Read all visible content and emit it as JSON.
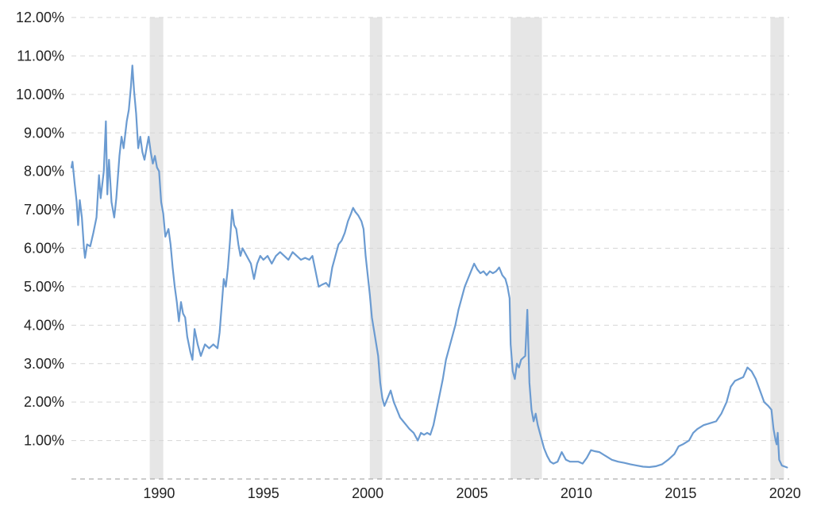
{
  "chart_data": {
    "type": "line",
    "title": "",
    "xlabel": "",
    "ylabel": "",
    "xlim": [
      1985.8,
      2020.2
    ],
    "ylim": [
      0,
      12
    ],
    "grid": true,
    "legend": "none",
    "y_ticks": [
      {
        "value": 1,
        "label": "1.00%"
      },
      {
        "value": 2,
        "label": "2.00%"
      },
      {
        "value": 3,
        "label": "3.00%"
      },
      {
        "value": 4,
        "label": "4.00%"
      },
      {
        "value": 5,
        "label": "5.00%"
      },
      {
        "value": 6,
        "label": "6.00%"
      },
      {
        "value": 7,
        "label": "7.00%"
      },
      {
        "value": 8,
        "label": "8.00%"
      },
      {
        "value": 9,
        "label": "9.00%"
      },
      {
        "value": 10,
        "label": "10.00%"
      },
      {
        "value": 11,
        "label": "11.00%"
      },
      {
        "value": 12,
        "label": "12.00%"
      }
    ],
    "x_ticks": [
      {
        "value": 1990,
        "label": "1990"
      },
      {
        "value": 1995,
        "label": "1995"
      },
      {
        "value": 2000,
        "label": "2000"
      },
      {
        "value": 2005,
        "label": "2005"
      },
      {
        "value": 2010,
        "label": "2010"
      },
      {
        "value": 2015,
        "label": "2015"
      },
      {
        "value": 2020,
        "label": "2020"
      }
    ],
    "recession_bands": [
      {
        "start": 1989.55,
        "end": 1990.2
      },
      {
        "start": 2000.1,
        "end": 2000.7
      },
      {
        "start": 2006.85,
        "end": 2008.35
      },
      {
        "start": 2019.3,
        "end": 2019.95
      }
    ],
    "series": [
      {
        "color": "#6b9bd1",
        "points": [
          [
            1985.8,
            8.1
          ],
          [
            1985.85,
            8.25
          ],
          [
            1985.95,
            7.7
          ],
          [
            1986.05,
            7.2
          ],
          [
            1986.12,
            6.6
          ],
          [
            1986.2,
            7.25
          ],
          [
            1986.3,
            6.8
          ],
          [
            1986.4,
            6.0
          ],
          [
            1986.45,
            5.75
          ],
          [
            1986.55,
            6.1
          ],
          [
            1986.7,
            6.05
          ],
          [
            1986.85,
            6.4
          ],
          [
            1987.0,
            6.8
          ],
          [
            1987.12,
            7.9
          ],
          [
            1987.2,
            7.3
          ],
          [
            1987.35,
            8.0
          ],
          [
            1987.45,
            9.3
          ],
          [
            1987.52,
            7.4
          ],
          [
            1987.6,
            8.3
          ],
          [
            1987.72,
            7.2
          ],
          [
            1987.85,
            6.8
          ],
          [
            1987.95,
            7.3
          ],
          [
            1988.1,
            8.4
          ],
          [
            1988.2,
            8.9
          ],
          [
            1988.3,
            8.6
          ],
          [
            1988.45,
            9.3
          ],
          [
            1988.55,
            9.6
          ],
          [
            1988.65,
            10.2
          ],
          [
            1988.72,
            10.75
          ],
          [
            1988.8,
            10.1
          ],
          [
            1988.9,
            9.5
          ],
          [
            1989.0,
            8.6
          ],
          [
            1989.1,
            8.9
          ],
          [
            1989.2,
            8.5
          ],
          [
            1989.3,
            8.3
          ],
          [
            1989.4,
            8.6
          ],
          [
            1989.5,
            8.9
          ],
          [
            1989.6,
            8.5
          ],
          [
            1989.7,
            8.2
          ],
          [
            1989.8,
            8.4
          ],
          [
            1989.9,
            8.1
          ],
          [
            1990.0,
            8.0
          ],
          [
            1990.1,
            7.2
          ],
          [
            1990.2,
            6.9
          ],
          [
            1990.3,
            6.3
          ],
          [
            1990.45,
            6.5
          ],
          [
            1990.55,
            6.1
          ],
          [
            1990.65,
            5.5
          ],
          [
            1990.75,
            5.0
          ],
          [
            1990.85,
            4.6
          ],
          [
            1990.95,
            4.1
          ],
          [
            1991.05,
            4.6
          ],
          [
            1991.15,
            4.3
          ],
          [
            1991.25,
            4.2
          ],
          [
            1991.35,
            3.7
          ],
          [
            1991.5,
            3.3
          ],
          [
            1991.6,
            3.1
          ],
          [
            1991.7,
            3.9
          ],
          [
            1991.85,
            3.5
          ],
          [
            1992.0,
            3.2
          ],
          [
            1992.2,
            3.5
          ],
          [
            1992.4,
            3.4
          ],
          [
            1992.6,
            3.5
          ],
          [
            1992.8,
            3.4
          ],
          [
            1992.9,
            3.8
          ],
          [
            1993.0,
            4.5
          ],
          [
            1993.1,
            5.2
          ],
          [
            1993.2,
            5.0
          ],
          [
            1993.3,
            5.5
          ],
          [
            1993.4,
            6.2
          ],
          [
            1993.5,
            7.0
          ],
          [
            1993.6,
            6.6
          ],
          [
            1993.7,
            6.5
          ],
          [
            1993.8,
            6.1
          ],
          [
            1993.9,
            5.8
          ],
          [
            1994.0,
            6.0
          ],
          [
            1994.2,
            5.8
          ],
          [
            1994.4,
            5.6
          ],
          [
            1994.55,
            5.2
          ],
          [
            1994.7,
            5.6
          ],
          [
            1994.85,
            5.8
          ],
          [
            1995.0,
            5.7
          ],
          [
            1995.2,
            5.8
          ],
          [
            1995.4,
            5.6
          ],
          [
            1995.6,
            5.8
          ],
          [
            1995.8,
            5.9
          ],
          [
            1996.0,
            5.8
          ],
          [
            1996.2,
            5.7
          ],
          [
            1996.4,
            5.9
          ],
          [
            1996.6,
            5.8
          ],
          [
            1996.8,
            5.7
          ],
          [
            1997.0,
            5.75
          ],
          [
            1997.2,
            5.7
          ],
          [
            1997.35,
            5.8
          ],
          [
            1997.5,
            5.4
          ],
          [
            1997.65,
            5.0
          ],
          [
            1997.8,
            5.05
          ],
          [
            1998.0,
            5.1
          ],
          [
            1998.15,
            5.0
          ],
          [
            1998.3,
            5.5
          ],
          [
            1998.45,
            5.8
          ],
          [
            1998.6,
            6.1
          ],
          [
            1998.75,
            6.2
          ],
          [
            1998.9,
            6.4
          ],
          [
            1999.05,
            6.7
          ],
          [
            1999.2,
            6.9
          ],
          [
            1999.3,
            7.05
          ],
          [
            1999.4,
            6.95
          ],
          [
            1999.55,
            6.85
          ],
          [
            1999.7,
            6.7
          ],
          [
            1999.8,
            6.5
          ],
          [
            1999.9,
            5.8
          ],
          [
            2000.0,
            5.3
          ],
          [
            2000.1,
            4.8
          ],
          [
            2000.2,
            4.2
          ],
          [
            2000.35,
            3.7
          ],
          [
            2000.5,
            3.2
          ],
          [
            2000.6,
            2.5
          ],
          [
            2000.7,
            2.1
          ],
          [
            2000.8,
            1.9
          ],
          [
            2000.95,
            2.1
          ],
          [
            2001.1,
            2.3
          ],
          [
            2001.25,
            2.0
          ],
          [
            2001.4,
            1.8
          ],
          [
            2001.55,
            1.6
          ],
          [
            2001.7,
            1.5
          ],
          [
            2001.85,
            1.4
          ],
          [
            2002.0,
            1.3
          ],
          [
            2002.2,
            1.2
          ],
          [
            2002.4,
            1.0
          ],
          [
            2002.55,
            1.2
          ],
          [
            2002.7,
            1.15
          ],
          [
            2002.85,
            1.2
          ],
          [
            2003.0,
            1.15
          ],
          [
            2003.15,
            1.4
          ],
          [
            2003.3,
            1.8
          ],
          [
            2003.45,
            2.2
          ],
          [
            2003.6,
            2.6
          ],
          [
            2003.75,
            3.1
          ],
          [
            2003.9,
            3.4
          ],
          [
            2004.05,
            3.7
          ],
          [
            2004.2,
            4.0
          ],
          [
            2004.35,
            4.4
          ],
          [
            2004.5,
            4.7
          ],
          [
            2004.65,
            5.0
          ],
          [
            2004.8,
            5.2
          ],
          [
            2004.95,
            5.4
          ],
          [
            2005.1,
            5.6
          ],
          [
            2005.25,
            5.45
          ],
          [
            2005.4,
            5.35
          ],
          [
            2005.55,
            5.4
          ],
          [
            2005.7,
            5.3
          ],
          [
            2005.85,
            5.4
          ],
          [
            2006.0,
            5.35
          ],
          [
            2006.15,
            5.4
          ],
          [
            2006.3,
            5.5
          ],
          [
            2006.45,
            5.3
          ],
          [
            2006.6,
            5.2
          ],
          [
            2006.7,
            5.0
          ],
          [
            2006.8,
            4.7
          ],
          [
            2006.85,
            3.5
          ],
          [
            2006.95,
            2.8
          ],
          [
            2007.05,
            2.6
          ],
          [
            2007.15,
            3.0
          ],
          [
            2007.25,
            2.9
          ],
          [
            2007.35,
            3.1
          ],
          [
            2007.45,
            3.15
          ],
          [
            2007.55,
            3.2
          ],
          [
            2007.65,
            4.4
          ],
          [
            2007.75,
            2.5
          ],
          [
            2007.85,
            1.8
          ],
          [
            2007.95,
            1.5
          ],
          [
            2008.05,
            1.7
          ],
          [
            2008.15,
            1.4
          ],
          [
            2008.3,
            1.1
          ],
          [
            2008.45,
            0.8
          ],
          [
            2008.6,
            0.6
          ],
          [
            2008.75,
            0.45
          ],
          [
            2008.9,
            0.4
          ],
          [
            2009.1,
            0.45
          ],
          [
            2009.3,
            0.7
          ],
          [
            2009.5,
            0.5
          ],
          [
            2009.7,
            0.45
          ],
          [
            2009.9,
            0.45
          ],
          [
            2010.1,
            0.45
          ],
          [
            2010.3,
            0.4
          ],
          [
            2010.5,
            0.55
          ],
          [
            2010.7,
            0.75
          ],
          [
            2010.9,
            0.72
          ],
          [
            2011.1,
            0.7
          ],
          [
            2011.4,
            0.6
          ],
          [
            2011.7,
            0.5
          ],
          [
            2012.0,
            0.45
          ],
          [
            2012.3,
            0.42
          ],
          [
            2012.6,
            0.38
          ],
          [
            2012.9,
            0.35
          ],
          [
            2013.2,
            0.32
          ],
          [
            2013.5,
            0.31
          ],
          [
            2013.8,
            0.33
          ],
          [
            2014.1,
            0.38
          ],
          [
            2014.4,
            0.5
          ],
          [
            2014.7,
            0.65
          ],
          [
            2014.9,
            0.85
          ],
          [
            2015.1,
            0.9
          ],
          [
            2015.4,
            1.0
          ],
          [
            2015.6,
            1.2
          ],
          [
            2015.8,
            1.3
          ],
          [
            2016.1,
            1.4
          ],
          [
            2016.4,
            1.45
          ],
          [
            2016.7,
            1.5
          ],
          [
            2016.95,
            1.7
          ],
          [
            2017.2,
            2.0
          ],
          [
            2017.4,
            2.4
          ],
          [
            2017.6,
            2.55
          ],
          [
            2017.8,
            2.6
          ],
          [
            2018.0,
            2.65
          ],
          [
            2018.2,
            2.9
          ],
          [
            2018.4,
            2.8
          ],
          [
            2018.6,
            2.6
          ],
          [
            2018.8,
            2.3
          ],
          [
            2019.0,
            2.0
          ],
          [
            2019.2,
            1.9
          ],
          [
            2019.35,
            1.8
          ],
          [
            2019.45,
            1.3
          ],
          [
            2019.55,
            1.0
          ],
          [
            2019.6,
            0.9
          ],
          [
            2019.65,
            1.2
          ],
          [
            2019.72,
            0.5
          ],
          [
            2019.85,
            0.35
          ],
          [
            2020.0,
            0.32
          ],
          [
            2020.1,
            0.3
          ]
        ]
      }
    ]
  },
  "colors": {
    "line": "#6b9bd1",
    "recession_band": "#e6e6e6",
    "grid": "#d6d6d6",
    "axis_baseline": "#9a9a9a",
    "text": "#222222",
    "background": "#ffffff"
  }
}
